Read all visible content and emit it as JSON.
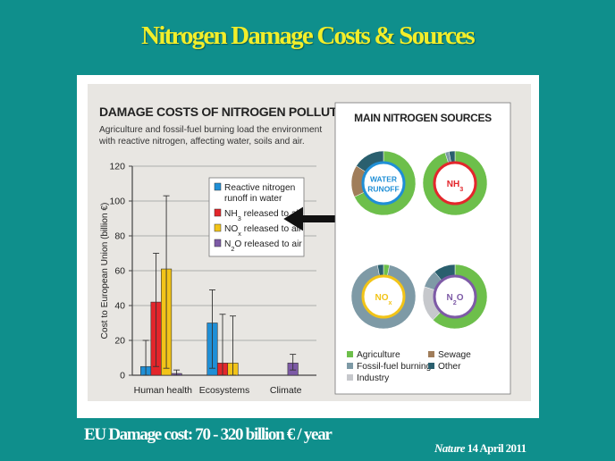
{
  "slide": {
    "title": "Nitrogen Damage Costs & Sources",
    "footer_cost": "EU Damage cost: 70 - 320 billion € / year",
    "footer_source_journal": "Nature",
    "footer_source_date": "14 April 2011"
  },
  "colors": {
    "background": "#0f8f8c",
    "title": "#f2ee2a",
    "water": "#1f8fd6",
    "nh3": "#e3262b",
    "nox": "#f2c418",
    "n2o": "#7d5aa6",
    "agriculture": "#6dbf4b",
    "sewage": "#a07d5a",
    "fossil": "#7e9aa6",
    "other": "#2a5f6e",
    "industry": "#c6c8cc"
  },
  "chart_data": [
    {
      "type": "bar",
      "title": "DAMAGE COSTS OF NITROGEN POLLUTION",
      "subtitle_lines": [
        "Agriculture and fossil-fuel burning load the environment",
        "with reactive nitrogen, affecting water, soils and air."
      ],
      "xlabel": "",
      "ylabel": "Cost to European Union (billion €)",
      "ylim": [
        0,
        120
      ],
      "yticks": [
        0,
        20,
        40,
        60,
        80,
        100,
        120
      ],
      "grid": true,
      "legend_position": "top-right",
      "categories": [
        "Human health",
        "Ecosystems",
        "Climate"
      ],
      "series": [
        {
          "name": "Reactive nitrogen runoff in water",
          "legend_lines": [
            "Reactive nitrogen",
            "runoff in water"
          ],
          "color": "#1f8fd6",
          "values": [
            5,
            30,
            null
          ],
          "err_low": [
            0,
            4,
            null
          ],
          "err_high": [
            20,
            49,
            null
          ]
        },
        {
          "name": "NH3 released to air",
          "legend_lines": [
            "NH3 released to air"
          ],
          "color": "#e3262b",
          "values": [
            42,
            7,
            null
          ],
          "err_low": [
            5,
            0,
            null
          ],
          "err_high": [
            70,
            35,
            null
          ]
        },
        {
          "name": "NOx released to air",
          "legend_lines": [
            "NOx released to air"
          ],
          "color": "#f2c418",
          "values": [
            61,
            7,
            null
          ],
          "err_low": [
            4,
            0,
            null
          ],
          "err_high": [
            103,
            34,
            null
          ]
        },
        {
          "name": "N2O released to air",
          "legend_lines": [
            "N2O released to air"
          ],
          "color": "#7d5aa6",
          "values": [
            1,
            null,
            7
          ],
          "err_low": [
            0,
            null,
            3
          ],
          "err_high": [
            3,
            null,
            12
          ]
        }
      ]
    },
    {
      "type": "pie",
      "title": "MAIN NITROGEN SOURCES",
      "legend": [
        "Agriculture",
        "Sewage",
        "Fossil-fuel burning",
        "Other",
        "Industry"
      ],
      "charts": [
        {
          "label_lines": [
            "WATER",
            "RUNOFF"
          ],
          "center_color": "#1f8fd6",
          "slices": [
            {
              "name": "Agriculture",
              "value": 68
            },
            {
              "name": "Sewage",
              "value": 16
            },
            {
              "name": "Other",
              "value": 16
            }
          ]
        },
        {
          "label_lines": [
            "NH3"
          ],
          "center_color": "#e3262b",
          "slices": [
            {
              "name": "Agriculture",
              "value": 95
            },
            {
              "name": "Fossil-fuel burning",
              "value": 2
            },
            {
              "name": "Other",
              "value": 3
            }
          ]
        },
        {
          "label_lines": [
            "NOx"
          ],
          "center_color": "#f2c418",
          "slices": [
            {
              "name": "Agriculture",
              "value": 3
            },
            {
              "name": "Fossil-fuel burning",
              "value": 94
            },
            {
              "name": "Other",
              "value": 3
            }
          ]
        },
        {
          "label_lines": [
            "N2O"
          ],
          "center_color": "#7d5aa6",
          "slices": [
            {
              "name": "Agriculture",
              "value": 62
            },
            {
              "name": "Industry",
              "value": 18
            },
            {
              "name": "Fossil-fuel burning",
              "value": 9
            },
            {
              "name": "Other",
              "value": 11
            }
          ]
        }
      ]
    }
  ]
}
